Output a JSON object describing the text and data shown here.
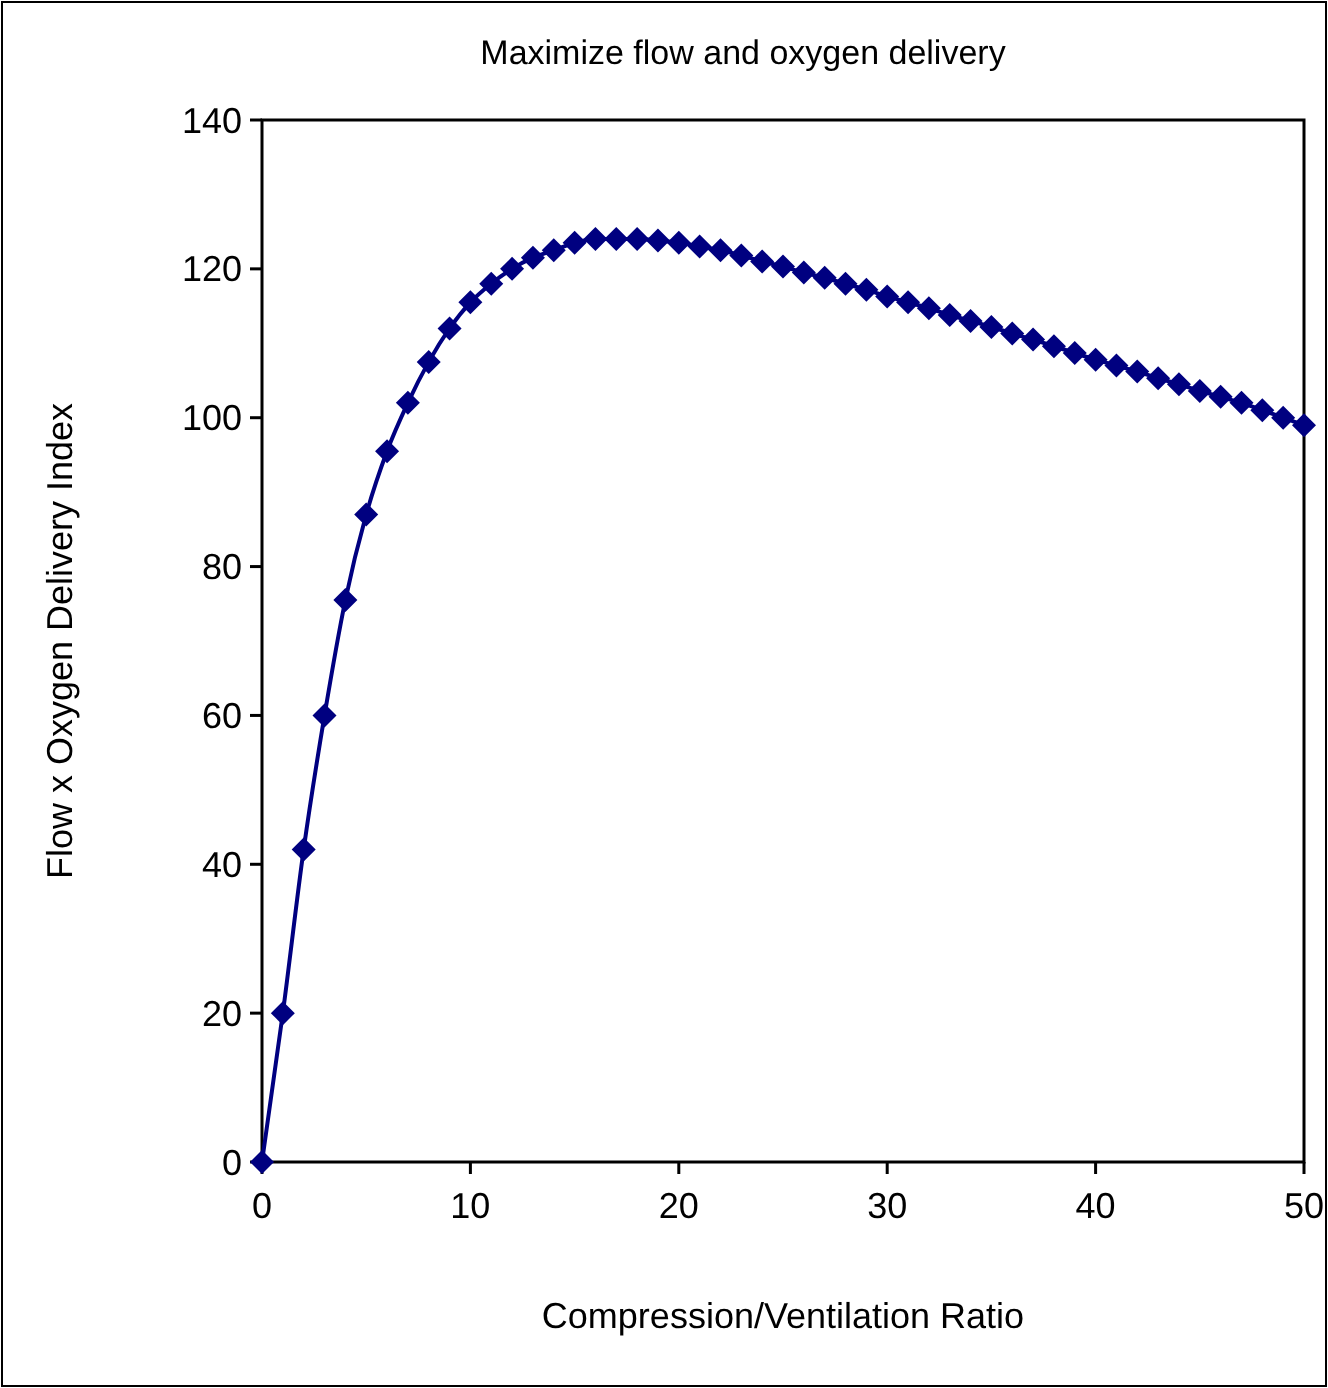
{
  "chart_data": {
    "type": "line",
    "title": "Maximize flow and oxygen delivery",
    "xlabel": "Compression/Ventilation Ratio",
    "ylabel": "Flow x Oxygen Delivery Index",
    "x": [
      0,
      1,
      2,
      3,
      4,
      5,
      6,
      7,
      8,
      9,
      10,
      11,
      12,
      13,
      14,
      15,
      16,
      17,
      18,
      19,
      20,
      21,
      22,
      23,
      24,
      25,
      26,
      27,
      28,
      29,
      30,
      31,
      32,
      33,
      34,
      35,
      36,
      37,
      38,
      39,
      40,
      41,
      42,
      43,
      44,
      45,
      46,
      47,
      48,
      49,
      50
    ],
    "series": [
      {
        "color": "#000080",
        "values": [
          0,
          20,
          42,
          60,
          75.5,
          87,
          95.5,
          102,
          107.5,
          112,
          115.5,
          118,
          120,
          121.5,
          122.5,
          123.5,
          124,
          124,
          124,
          123.8,
          123.5,
          123,
          122.5,
          121.8,
          121,
          120.3,
          119.5,
          118.8,
          118,
          117.2,
          116.3,
          115.5,
          114.7,
          113.8,
          113,
          112.2,
          111.3,
          110.5,
          109.6,
          108.7,
          107.8,
          107,
          106.2,
          105.3,
          104.5,
          103.6,
          102.8,
          102,
          101,
          100,
          99
        ]
      }
    ],
    "xlim": [
      0,
      50
    ],
    "xticks": [
      0,
      10,
      20,
      30,
      40,
      50
    ],
    "ylim": [
      0,
      140
    ],
    "yticks": [
      0,
      20,
      40,
      60,
      80,
      100,
      120,
      140
    ],
    "marker": "diamond",
    "line_style": "solid"
  }
}
